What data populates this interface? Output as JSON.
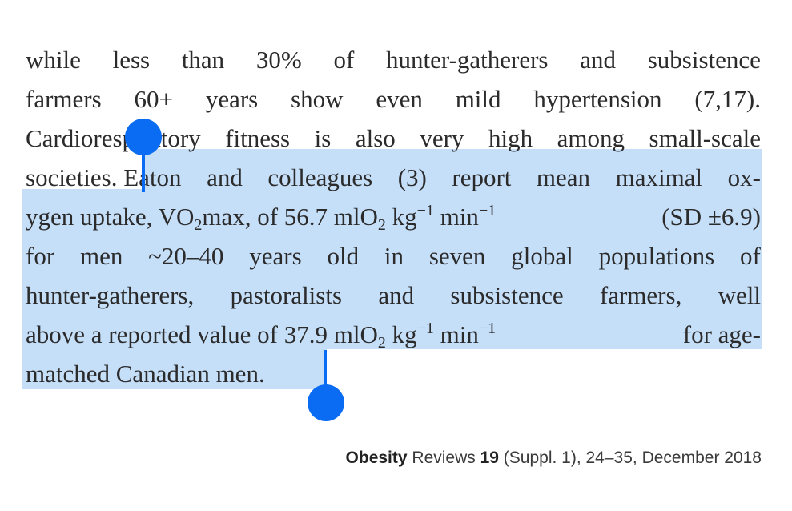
{
  "paragraph": {
    "line1": [
      "while",
      "less",
      "than",
      "30%",
      "of",
      "hunter-gatherers",
      "and",
      "subsistence"
    ],
    "line2": [
      "farmers",
      "60+",
      "years",
      "show",
      "even",
      "mild",
      "hypertension",
      "(7,17)."
    ],
    "line3": [
      "Cardiorespiratory",
      "fitness",
      "is",
      "also",
      "very",
      "high",
      "among",
      "small-scale"
    ],
    "line4_a": "societies. ",
    "line4_b": [
      "Eaton",
      "and",
      "colleagues",
      "(3)",
      "report",
      "mean",
      "maximal",
      "ox-"
    ],
    "line5": {
      "a": "ygen uptake, VO",
      "sub1": "2",
      "b": "max, of 56.7 mlO",
      "sub2": "2",
      "c": " kg",
      "sup1": "−1",
      "d": " min",
      "sup2": "−1",
      "e": " (SD ±6.9)"
    },
    "line6": [
      "for",
      "men",
      "~20–40",
      "years",
      "old",
      "in",
      "seven",
      "global",
      "populations",
      "of"
    ],
    "line7": [
      "hunter-gatherers,",
      "pastoralists",
      "and",
      "subsistence",
      "farmers,",
      "well"
    ],
    "line8": {
      "a": "above a reported value of 37.9 mlO",
      "sub1": "2",
      "b": " kg",
      "sup1": "−1",
      "c": " min",
      "sup2": "−1",
      "d": " for age-"
    },
    "line9": "matched Canadian men."
  },
  "footer": {
    "journal": "Obesity",
    "journal_rest": " Reviews ",
    "volume": "19",
    "details": " (Suppl. 1), 24–35, December 2018"
  },
  "colors": {
    "selection": "#b0d2f7",
    "handle": "#0a6cf2"
  }
}
